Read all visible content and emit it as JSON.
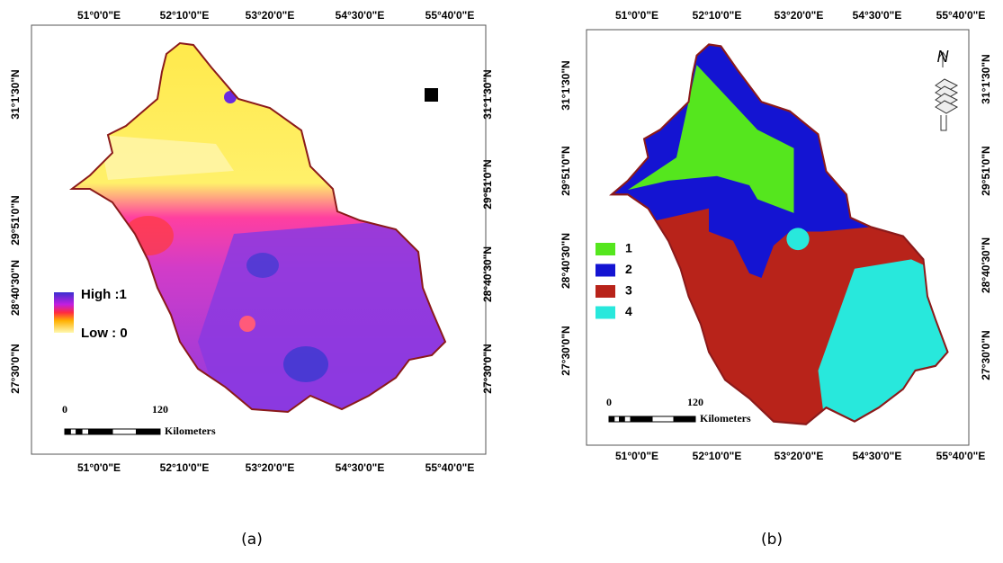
{
  "panels": [
    {
      "caption": "(a)",
      "top_labels": [
        "51°0'0\"E",
        "52°10'0\"E",
        "53°20'0\"E",
        "54°30'0\"E",
        "55°40'0\"E"
      ],
      "bottom_labels": [
        "51°0'0\"E",
        "52°10'0\"E",
        "53°20'0\"E",
        "54°30'0\"E",
        "55°40'0\"E"
      ],
      "left_labels": [
        "31°1'30\"N",
        "29°51'0\"N",
        "28°40'30\"N",
        "27°30'0\"N"
      ],
      "right_labels": [
        "31°1'30\"N",
        "29°51'0\"N",
        "28°40'30\"N",
        "27°30'0\"N"
      ],
      "legend": {
        "high": "High :1",
        "low": "Low : 0"
      },
      "scale": {
        "start": "0",
        "end": "120",
        "unit": "Kilometers"
      }
    },
    {
      "caption": "(b)",
      "top_labels": [
        "51°0'0\"E",
        "52°10'0\"E",
        "53°20'0\"E",
        "54°30'0\"E",
        "55°40'0\"E"
      ],
      "bottom_labels": [
        "51°0'0\"E",
        "52°10'0\"E",
        "53°20'0\"E",
        "54°30'0\"E",
        "55°40'0\"E"
      ],
      "left_labels": [
        "31°1'30\"N",
        "29°51'0\"N",
        "28°40'30\"N",
        "27°30'0\"N"
      ],
      "right_labels": [
        "31°1'30\"N",
        "29°51'0\"N",
        "28°40'30\"N",
        "27°30'0\"N"
      ],
      "legend": [
        {
          "label": "1",
          "color": "#55e61e"
        },
        {
          "label": "2",
          "color": "#1414d2"
        },
        {
          "label": "3",
          "color": "#b8231a"
        },
        {
          "label": "4",
          "color": "#28e8dc"
        }
      ],
      "north": "N",
      "scale": {
        "start": "0",
        "end": "120",
        "unit": "Kilometers"
      }
    }
  ]
}
